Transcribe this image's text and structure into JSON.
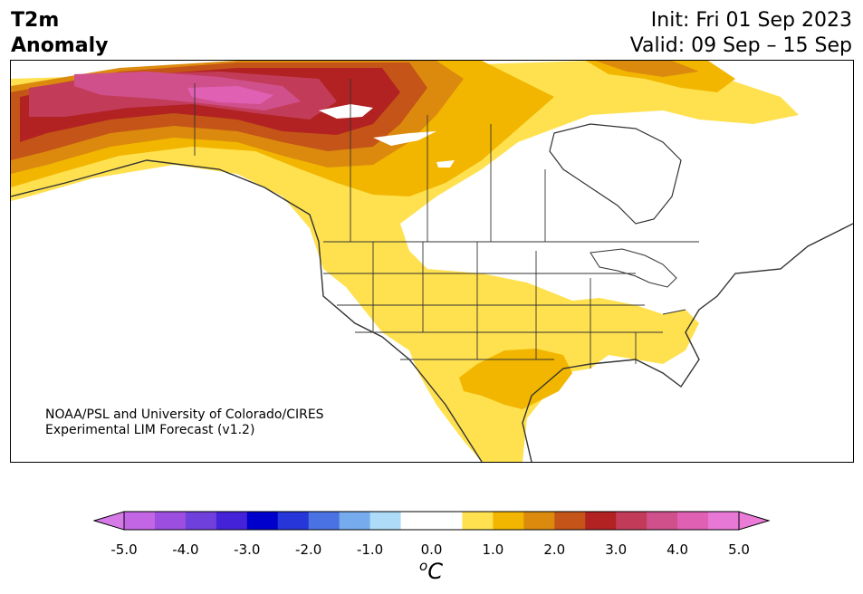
{
  "header": {
    "title_line1": "T2m",
    "title_line2": "Anomaly",
    "init": "Init: Fri 01 Sep 2023",
    "valid": "Valid: 09 Sep – 15 Sep"
  },
  "credit": {
    "line1": "NOAA/PSL and University of Colorado/CIRES",
    "line2": "Experimental LIM Forecast (v1.2)"
  },
  "colorbar": {
    "colors": [
      "#c366e6",
      "#9b4ee0",
      "#7040dc",
      "#4422d8",
      "#0000cc",
      "#2636d8",
      "#4a72e2",
      "#76acee",
      "#aedcf8",
      "#ffffff",
      "#ffffff",
      "#ffe14f",
      "#f2b600",
      "#dc8a0e",
      "#c45417",
      "#b22222",
      "#c23c5a",
      "#d0508c",
      "#e060b4",
      "#e878d6"
    ],
    "min_color": "#d67ae8",
    "max_color": "#ea7cd8",
    "ticks": [
      "-5.0",
      "-4.0",
      "-3.0",
      "-2.0",
      "-1.0",
      "0.0",
      "1.0",
      "2.0",
      "3.0",
      "4.0",
      "5.0"
    ],
    "unit_base": "C",
    "unit_sup": "o"
  },
  "map": {
    "region": "North America",
    "variable": "2-m temperature anomaly",
    "palette": {
      "water": "#ffffff",
      "land_neutral": "#ffffff",
      "a1": "#ffe14f",
      "a2": "#f2b600",
      "a3": "#dc8a0e",
      "a4": "#c45417",
      "a5": "#b22222",
      "a6": "#c23c5a",
      "a7": "#d0508c",
      "a8": "#e060b4",
      "coast": "#333333"
    }
  }
}
